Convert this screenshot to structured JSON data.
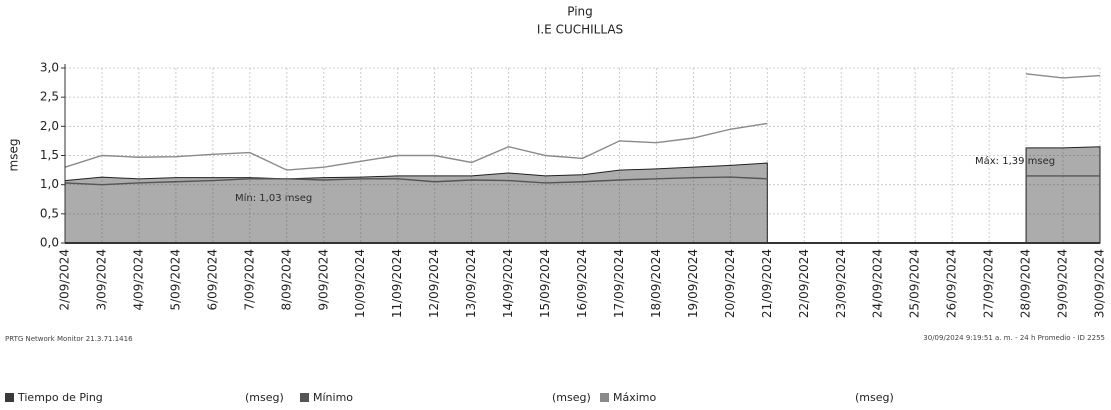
{
  "chart_data": {
    "type": "line",
    "title": "Ping",
    "subtitle": "I.E CUCHILLAS",
    "y_label": "mseg",
    "categories": [
      "2/09/2024",
      "3/09/2024",
      "4/09/2024",
      "5/09/2024",
      "6/09/2024",
      "7/09/2024",
      "8/09/2024",
      "9/09/2024",
      "10/09/2024",
      "11/09/2024",
      "12/09/2024",
      "13/09/2024",
      "14/09/2024",
      "15/09/2024",
      "16/09/2024",
      "17/09/2024",
      "18/09/2024",
      "19/09/2024",
      "20/09/2024",
      "21/09/2024",
      "22/09/2024",
      "23/09/2024",
      "24/09/2024",
      "25/09/2024",
      "26/09/2024",
      "27/09/2024",
      "28/09/2024",
      "29/09/2024",
      "30/09/2024"
    ],
    "series": [
      {
        "name": "Tiempo de Ping",
        "unit": "(mseg)",
        "color": "#3a3a3a",
        "fill": true,
        "values": [
          1.07,
          1.13,
          1.1,
          1.12,
          1.12,
          1.12,
          1.1,
          1.12,
          1.13,
          1.15,
          1.15,
          1.15,
          1.2,
          1.15,
          1.17,
          1.25,
          1.27,
          1.3,
          1.33,
          1.37,
          null,
          null,
          null,
          null,
          null,
          null,
          1.63,
          1.63,
          1.65
        ]
      },
      {
        "name": "Mínimo",
        "unit": "(mseg)",
        "color": "#555555",
        "fill": false,
        "values": [
          1.03,
          1.0,
          1.03,
          1.05,
          1.07,
          1.1,
          1.1,
          1.08,
          1.1,
          1.1,
          1.05,
          1.08,
          1.07,
          1.03,
          1.05,
          1.08,
          1.1,
          1.12,
          1.13,
          1.1,
          null,
          null,
          null,
          null,
          null,
          null,
          1.15,
          1.15,
          1.15
        ]
      },
      {
        "name": "Máximo",
        "unit": "(mseg)",
        "color": "#8a8a8a",
        "fill": false,
        "values": [
          1.3,
          1.5,
          1.47,
          1.48,
          1.52,
          1.55,
          1.25,
          1.3,
          1.4,
          1.5,
          1.5,
          1.38,
          1.65,
          1.5,
          1.45,
          1.75,
          1.72,
          1.8,
          1.95,
          2.05,
          null,
          null,
          null,
          null,
          null,
          null,
          2.9,
          2.83,
          2.87
        ]
      }
    ],
    "ylim": [
      0,
      3
    ],
    "yticks": [
      {
        "value": 0,
        "label": "0,0"
      },
      {
        "value": 0.5,
        "label": "0,5"
      },
      {
        "value": 1,
        "label": "1,0"
      },
      {
        "value": 1.5,
        "label": "1,5"
      },
      {
        "value": 2,
        "label": "2,0"
      },
      {
        "value": 2.5,
        "label": "2,5"
      },
      {
        "value": 3,
        "label": "3,0"
      }
    ],
    "grid": true,
    "annotations": [
      "Mín: 1,03 mseg",
      "Máx: 1,39 mseg"
    ],
    "footer_left": "PRTG Network Monitor 21.3.71.1416",
    "footer_right": "30/09/2024 9:19:51 a. m. - 24 h Promedio - ID 2255"
  }
}
